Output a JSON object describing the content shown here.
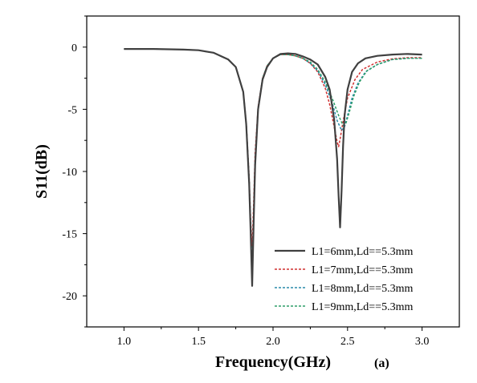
{
  "chart_data": {
    "type": "line",
    "xlabel": "Frequency(GHz)",
    "ylabel": "S11(dB)",
    "panel_label": "(a)",
    "xlim": [
      0.75,
      3.25
    ],
    "ylim": [
      -22.5,
      2.5
    ],
    "xticks": [
      1.0,
      1.5,
      2.0,
      2.5,
      3.0
    ],
    "xtick_labels": [
      "1.0",
      "1.5",
      "2.0",
      "2.5",
      "3.0"
    ],
    "yticks": [
      0,
      -5,
      -10,
      -15,
      -20
    ],
    "ytick_labels": [
      "0",
      "-5",
      "-10",
      "-15",
      "-20"
    ],
    "grid": false,
    "legend_position": "bottom-right",
    "series": [
      {
        "name": "L1=6mm,Ld==5.3mm",
        "color": "#404040",
        "style": "solid",
        "x": [
          1.0,
          1.2,
          1.4,
          1.5,
          1.6,
          1.7,
          1.75,
          1.8,
          1.82,
          1.84,
          1.85,
          1.86,
          1.87,
          1.88,
          1.9,
          1.93,
          1.96,
          2.0,
          2.05,
          2.1,
          2.15,
          2.2,
          2.25,
          2.3,
          2.35,
          2.38,
          2.41,
          2.43,
          2.44,
          2.45,
          2.46,
          2.47,
          2.48,
          2.5,
          2.53,
          2.57,
          2.62,
          2.7,
          2.8,
          2.9,
          3.0
        ],
        "y": [
          -0.15,
          -0.15,
          -0.2,
          -0.25,
          -0.45,
          -1.0,
          -1.6,
          -3.6,
          -6.2,
          -11.0,
          -15.0,
          -19.2,
          -14.0,
          -9.5,
          -5.0,
          -2.6,
          -1.6,
          -0.9,
          -0.55,
          -0.5,
          -0.55,
          -0.75,
          -1.0,
          -1.4,
          -2.4,
          -3.4,
          -5.8,
          -9.0,
          -12.0,
          -14.5,
          -11.5,
          -8.0,
          -5.5,
          -3.4,
          -2.0,
          -1.3,
          -0.9,
          -0.7,
          -0.6,
          -0.55,
          -0.6
        ]
      },
      {
        "name": "L1=7mm,Ld==5.3mm",
        "color": "#d03030",
        "style": "dotted",
        "x": [
          1.0,
          1.2,
          1.4,
          1.5,
          1.6,
          1.7,
          1.75,
          1.8,
          1.82,
          1.84,
          1.85,
          1.86,
          1.87,
          1.88,
          1.9,
          1.93,
          1.96,
          2.0,
          2.05,
          2.1,
          2.15,
          2.2,
          2.25,
          2.3,
          2.35,
          2.38,
          2.41,
          2.43,
          2.44,
          2.45,
          2.47,
          2.5,
          2.55,
          2.6,
          2.7,
          2.8,
          2.9,
          3.0
        ],
        "y": [
          -0.15,
          -0.15,
          -0.2,
          -0.25,
          -0.45,
          -1.0,
          -1.6,
          -3.6,
          -6.0,
          -10.5,
          -14.0,
          -16.0,
          -12.5,
          -8.5,
          -4.8,
          -2.5,
          -1.5,
          -0.9,
          -0.6,
          -0.6,
          -0.7,
          -0.9,
          -1.3,
          -2.0,
          -3.3,
          -4.6,
          -6.4,
          -7.6,
          -8.0,
          -7.4,
          -6.0,
          -4.1,
          -2.6,
          -1.8,
          -1.2,
          -0.95,
          -0.85,
          -0.85
        ]
      },
      {
        "name": "L1=8mm,Ld==5.3mm",
        "color": "#2a8aaa",
        "style": "dotted",
        "x": [
          1.0,
          1.2,
          1.4,
          1.5,
          1.6,
          1.7,
          1.75,
          1.8,
          1.82,
          1.84,
          1.85,
          1.86,
          1.87,
          1.88,
          1.9,
          1.93,
          1.96,
          2.0,
          2.05,
          2.1,
          2.15,
          2.2,
          2.25,
          2.3,
          2.35,
          2.4,
          2.43,
          2.46,
          2.48,
          2.5,
          2.53,
          2.57,
          2.62,
          2.7,
          2.8,
          2.9,
          3.0
        ],
        "y": [
          -0.15,
          -0.15,
          -0.2,
          -0.25,
          -0.45,
          -1.0,
          -1.6,
          -3.6,
          -6.1,
          -10.8,
          -14.5,
          -18.0,
          -13.5,
          -9.0,
          -4.9,
          -2.5,
          -1.5,
          -0.9,
          -0.6,
          -0.6,
          -0.7,
          -0.9,
          -1.3,
          -1.9,
          -3.0,
          -4.6,
          -5.9,
          -6.7,
          -6.4,
          -5.5,
          -4.1,
          -2.9,
          -2.0,
          -1.4,
          -1.0,
          -0.9,
          -0.9
        ]
      },
      {
        "name": "L1=9mm,Ld==5.3mm",
        "color": "#2e9e68",
        "style": "dotted",
        "x": [
          1.0,
          1.2,
          1.4,
          1.5,
          1.6,
          1.7,
          1.75,
          1.8,
          1.82,
          1.84,
          1.85,
          1.86,
          1.87,
          1.88,
          1.9,
          1.93,
          1.96,
          2.0,
          2.05,
          2.1,
          2.15,
          2.2,
          2.25,
          2.3,
          2.35,
          2.4,
          2.44,
          2.47,
          2.49,
          2.51,
          2.54,
          2.58,
          2.63,
          2.7,
          2.8,
          2.9,
          3.0
        ],
        "y": [
          -0.15,
          -0.15,
          -0.2,
          -0.25,
          -0.45,
          -1.0,
          -1.6,
          -3.6,
          -6.1,
          -10.8,
          -14.5,
          -18.5,
          -13.8,
          -9.2,
          -5.0,
          -2.5,
          -1.5,
          -0.9,
          -0.6,
          -0.6,
          -0.7,
          -0.9,
          -1.2,
          -1.8,
          -2.8,
          -4.2,
          -5.5,
          -6.3,
          -6.1,
          -5.3,
          -4.0,
          -2.8,
          -1.9,
          -1.4,
          -1.0,
          -0.9,
          -0.9
        ]
      }
    ]
  }
}
